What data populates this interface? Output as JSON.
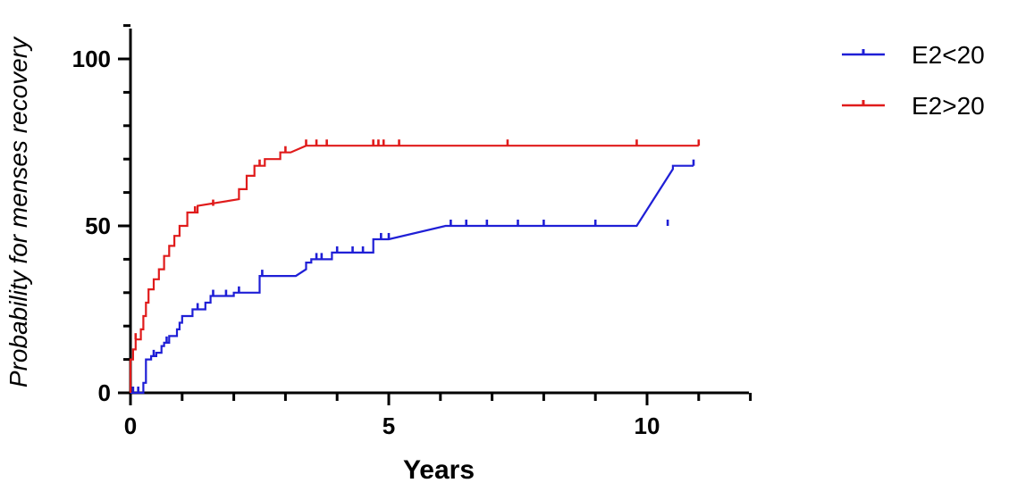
{
  "chart_data": {
    "type": "line",
    "step": true,
    "xlabel": "Years",
    "ylabel": "Probability for menses recovery",
    "xlim": [
      0,
      12
    ],
    "ylim": [
      0,
      110
    ],
    "x_ticks": [
      0,
      5,
      10
    ],
    "x_minor_step": 1,
    "y_ticks": [
      0,
      50,
      100
    ],
    "y_minor_step": 10,
    "legend_position": "top-right",
    "grid": false,
    "series": [
      {
        "name": "E2<20",
        "color": "#1f1fd6",
        "points": [
          [
            0,
            0
          ],
          [
            0.25,
            0
          ],
          [
            0.25,
            3
          ],
          [
            0.3,
            3
          ],
          [
            0.3,
            10
          ],
          [
            0.4,
            10
          ],
          [
            0.4,
            11
          ],
          [
            0.5,
            11
          ],
          [
            0.5,
            12
          ],
          [
            0.6,
            12
          ],
          [
            0.6,
            14
          ],
          [
            0.65,
            14
          ],
          [
            0.65,
            15
          ],
          [
            0.75,
            15
          ],
          [
            0.75,
            17
          ],
          [
            0.9,
            17
          ],
          [
            0.9,
            19
          ],
          [
            0.95,
            19
          ],
          [
            0.95,
            21
          ],
          [
            1.0,
            21
          ],
          [
            1.0,
            23
          ],
          [
            1.2,
            23
          ],
          [
            1.2,
            25
          ],
          [
            1.45,
            25
          ],
          [
            1.45,
            27
          ],
          [
            1.55,
            27
          ],
          [
            1.55,
            29
          ],
          [
            2.0,
            29
          ],
          [
            2.0,
            30
          ],
          [
            2.5,
            30
          ],
          [
            2.5,
            35
          ],
          [
            3.2,
            35
          ],
          [
            3.4,
            37
          ],
          [
            3.4,
            39
          ],
          [
            3.5,
            39
          ],
          [
            3.5,
            40
          ],
          [
            3.9,
            40
          ],
          [
            3.9,
            42
          ],
          [
            4.7,
            42
          ],
          [
            4.7,
            46
          ],
          [
            5.0,
            46
          ],
          [
            6.1,
            50
          ],
          [
            9.8,
            50
          ],
          [
            10.5,
            67
          ],
          [
            10.5,
            68
          ],
          [
            10.9,
            68
          ]
        ],
        "censor_x": [
          0.05,
          0.15,
          0.45,
          0.7,
          1.3,
          1.6,
          1.85,
          2.1,
          2.55,
          3.6,
          3.7,
          4.0,
          4.3,
          4.5,
          4.85,
          5.0,
          6.2,
          6.5,
          6.9,
          7.5,
          8.0,
          9.0,
          10.4,
          10.9
        ]
      },
      {
        "name": "E2>20",
        "color": "#e01b1b",
        "points": [
          [
            0,
            0
          ],
          [
            0,
            10
          ],
          [
            0.05,
            10
          ],
          [
            0.05,
            13
          ],
          [
            0.1,
            13
          ],
          [
            0.1,
            16
          ],
          [
            0.2,
            16
          ],
          [
            0.2,
            19
          ],
          [
            0.25,
            19
          ],
          [
            0.25,
            23
          ],
          [
            0.3,
            23
          ],
          [
            0.3,
            27
          ],
          [
            0.35,
            27
          ],
          [
            0.35,
            31
          ],
          [
            0.45,
            31
          ],
          [
            0.45,
            34
          ],
          [
            0.55,
            34
          ],
          [
            0.55,
            37
          ],
          [
            0.65,
            37
          ],
          [
            0.65,
            41
          ],
          [
            0.75,
            41
          ],
          [
            0.75,
            44
          ],
          [
            0.85,
            44
          ],
          [
            0.85,
            47
          ],
          [
            0.95,
            47
          ],
          [
            0.95,
            50
          ],
          [
            1.1,
            50
          ],
          [
            1.1,
            54
          ],
          [
            1.3,
            54
          ],
          [
            1.3,
            56
          ],
          [
            2.1,
            58
          ],
          [
            2.1,
            61
          ],
          [
            2.25,
            61
          ],
          [
            2.25,
            65
          ],
          [
            2.4,
            65
          ],
          [
            2.4,
            68
          ],
          [
            2.6,
            68
          ],
          [
            2.6,
            70
          ],
          [
            2.9,
            70
          ],
          [
            2.9,
            72
          ],
          [
            3.1,
            72
          ],
          [
            3.4,
            74
          ],
          [
            11.0,
            74
          ]
        ],
        "censor_x": [
          0.1,
          1.25,
          1.6,
          2.5,
          3.0,
          3.4,
          3.6,
          3.8,
          4.7,
          4.8,
          4.9,
          5.2,
          7.3,
          9.8,
          11.0
        ]
      }
    ]
  }
}
